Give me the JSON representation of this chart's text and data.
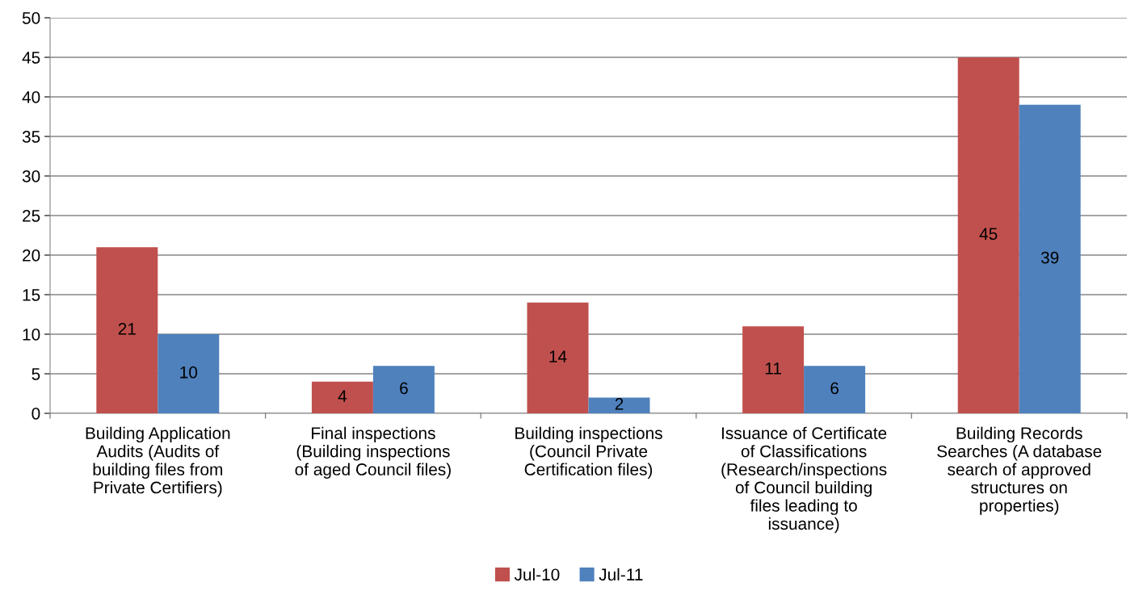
{
  "chart_data": {
    "type": "bar",
    "categories": [
      "Building Application\nAudits (Audits of\nbuilding files from\nPrivate Certifiers)",
      "Final inspections\n(Building inspections\nof aged Council files)",
      "Building inspections\n(Council Private\nCertification files)",
      "Issuance of Certificate\nof Classifications\n(Research/inspections\nof Council building\nfiles leading to\nissuance)",
      "Building Records\nSearches (A database\nsearch of approved\nstructures on\nproperties)"
    ],
    "series": [
      {
        "name": "Jul-10",
        "color": "#c0504d",
        "values": [
          21,
          4,
          14,
          11,
          45
        ]
      },
      {
        "name": "Jul-11",
        "color": "#4f81bd",
        "values": [
          10,
          6,
          2,
          6,
          39
        ]
      }
    ],
    "ylim": [
      0,
      50
    ],
    "yticks": [
      0,
      5,
      10,
      15,
      20,
      25,
      30,
      35,
      40,
      45,
      50
    ],
    "grid": "y",
    "legend": "bottom",
    "data_labels": true
  }
}
